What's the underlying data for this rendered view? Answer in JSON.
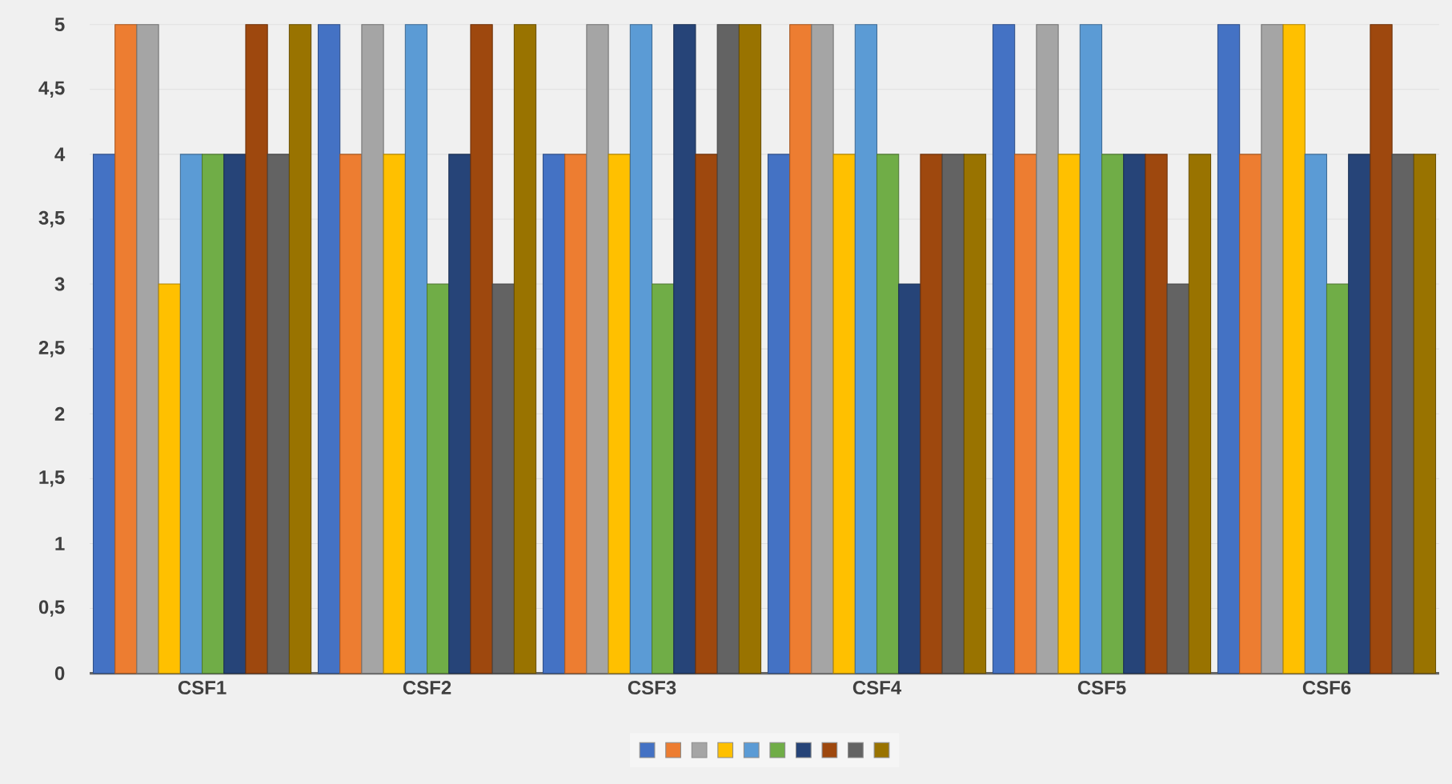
{
  "chart_data": {
    "type": "bar",
    "categories": [
      "CSF1",
      "CSF2",
      "CSF3",
      "CSF4",
      "CSF5",
      "CSF6"
    ],
    "series": [
      {
        "color": "#4472c4",
        "values": [
          4,
          5,
          4,
          4,
          5,
          5
        ]
      },
      {
        "color": "#ed7d31",
        "values": [
          5,
          4,
          4,
          5,
          4,
          4
        ]
      },
      {
        "color": "#a5a5a5",
        "values": [
          5,
          5,
          5,
          5,
          5,
          5
        ]
      },
      {
        "color": "#ffc000",
        "values": [
          3,
          4,
          4,
          4,
          4,
          5
        ]
      },
      {
        "color": "#5b9bd5",
        "values": [
          4,
          5,
          5,
          5,
          5,
          4
        ]
      },
      {
        "color": "#70ad47",
        "values": [
          4,
          3,
          3,
          4,
          4,
          3
        ]
      },
      {
        "color": "#264478",
        "values": [
          4,
          4,
          5,
          3,
          4,
          4
        ]
      },
      {
        "color": "#9e480e",
        "values": [
          5,
          5,
          4,
          4,
          4,
          5
        ]
      },
      {
        "color": "#636363",
        "values": [
          4,
          3,
          5,
          4,
          3,
          4
        ]
      },
      {
        "color": "#997300",
        "values": [
          5,
          5,
          5,
          4,
          4,
          4
        ]
      }
    ],
    "ylim": [
      0,
      5
    ],
    "yticks": [
      0,
      {
        "value": 0.5,
        "label": "0,5"
      },
      1,
      {
        "value": 1.5,
        "label": "1,5"
      },
      2,
      {
        "value": 2.5,
        "label": "2,5"
      },
      3,
      {
        "value": 3.5,
        "label": "3,5"
      },
      4,
      {
        "value": 4.5,
        "label": "4,5"
      },
      5
    ],
    "grid": "y"
  }
}
